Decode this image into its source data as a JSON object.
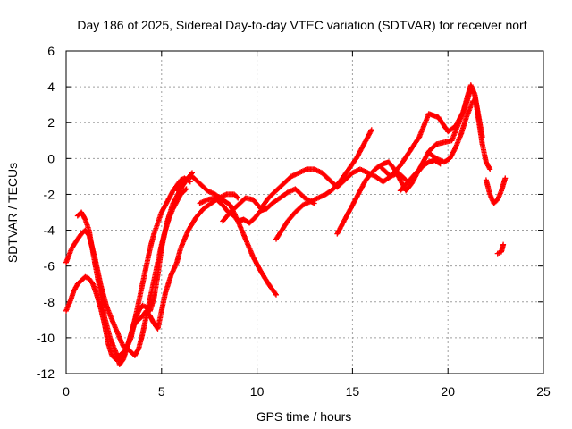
{
  "chart_data": {
    "type": "scatter",
    "title": "Day 186 of 2025, Sidereal Day-to-day VTEC variation (SDTVAR) for receiver norf",
    "xlabel": "GPS time / hours",
    "ylabel": "SDTVAR / TECUs",
    "xlim": [
      0,
      25
    ],
    "ylim": [
      -12,
      6
    ],
    "xticks": [
      "0",
      "5",
      "10",
      "15",
      "20",
      "25"
    ],
    "yticks": [
      "-12",
      "-10",
      "-8",
      "-6",
      "-4",
      "-2",
      "0",
      "2",
      "4",
      "6"
    ],
    "grid": true,
    "marker": "+",
    "color": "#ff0000",
    "series": [
      {
        "x": [
          0.0,
          0.3,
          0.6,
          0.8,
          1.0,
          1.2,
          1.5,
          1.8,
          2.1,
          2.4,
          2.6,
          2.8,
          3.0,
          3.2,
          3.4,
          3.6,
          3.8,
          4.0,
          4.2,
          4.4,
          4.6,
          4.8,
          5.0,
          5.2,
          5.4,
          5.6,
          5.8,
          6.0,
          6.2,
          6.5
        ],
        "y": [
          -5.8,
          -5.0,
          -4.5,
          -4.2,
          -4.0,
          -4.3,
          -5.5,
          -7.0,
          -8.2,
          -9.0,
          -9.5,
          -10.0,
          -10.5,
          -10.5,
          -10.0,
          -9.0,
          -8.0,
          -7.0,
          -6.0,
          -5.0,
          -4.2,
          -3.6,
          -3.0,
          -2.6,
          -2.2,
          -1.8,
          -1.5,
          -1.2,
          -1.1,
          -1.3
        ]
      },
      {
        "x": [
          0.0,
          0.2,
          0.4,
          0.6,
          0.8,
          1.0,
          1.2,
          1.4,
          1.6,
          1.8,
          2.0,
          2.2,
          2.4,
          2.6,
          2.8,
          3.0,
          3.2,
          3.4,
          3.6,
          3.8,
          4.0,
          4.2,
          4.4,
          4.6,
          4.8,
          5.0,
          5.2,
          5.4,
          5.6,
          5.8,
          6.0,
          6.3
        ],
        "y": [
          -8.5,
          -8.0,
          -7.4,
          -7.0,
          -6.8,
          -6.6,
          -6.7,
          -7.0,
          -7.6,
          -8.3,
          -9.2,
          -10.3,
          -11.0,
          -11.2,
          -11.0,
          -10.8,
          -10.6,
          -10.8,
          -11.0,
          -10.6,
          -9.8,
          -8.8,
          -7.8,
          -6.8,
          -5.8,
          -4.8,
          -4.0,
          -3.3,
          -2.8,
          -2.4,
          -2.0,
          -1.7
        ]
      },
      {
        "x": [
          0.6,
          0.8,
          1.0,
          1.2,
          1.5,
          1.8,
          2.0,
          2.3,
          2.6,
          2.8,
          3.0,
          3.2,
          3.4,
          3.6,
          3.8,
          4.0,
          4.2,
          4.4,
          4.6,
          4.8,
          5.0,
          5.3,
          5.6,
          6.0,
          6.3,
          6.6
        ],
        "y": [
          -3.2,
          -3.0,
          -3.4,
          -4.0,
          -5.8,
          -7.5,
          -8.8,
          -10.0,
          -10.8,
          -11.5,
          -11.2,
          -10.5,
          -9.8,
          -9.0,
          -8.5,
          -8.2,
          -8.3,
          -8.5,
          -7.8,
          -6.5,
          -5.0,
          -3.5,
          -2.5,
          -1.7,
          -1.2,
          -0.8
        ]
      },
      {
        "x": [
          2.6,
          2.8,
          3.0,
          3.2,
          3.4,
          3.6,
          3.8,
          4.0,
          4.2,
          4.4,
          4.6,
          4.8,
          5.0,
          5.2,
          5.5,
          5.8,
          6.0,
          6.4,
          6.8,
          7.2,
          7.6,
          8.0,
          8.4,
          8.8,
          9.0
        ],
        "y": [
          -11.0,
          -11.3,
          -11.0,
          -10.5,
          -9.8,
          -9.2,
          -9.0,
          -8.8,
          -8.5,
          -8.8,
          -9.2,
          -9.5,
          -8.5,
          -7.5,
          -6.5,
          -5.8,
          -5.0,
          -4.0,
          -3.3,
          -2.8,
          -2.5,
          -2.2,
          -2.0,
          -2.0,
          -2.2
        ]
      },
      {
        "x": [
          7.0,
          7.4,
          7.8,
          8.2,
          8.5,
          8.8,
          9.0,
          9.3,
          9.6,
          9.9,
          10.2,
          10.5,
          10.8,
          11.2,
          11.6,
          12.0,
          12.5,
          13.0
        ],
        "y": [
          -2.5,
          -2.3,
          -2.2,
          -2.6,
          -3.0,
          -3.2,
          -3.5,
          -3.4,
          -3.6,
          -3.3,
          -2.9,
          -2.8,
          -2.5,
          -2.2,
          -1.9,
          -1.7,
          -2.2,
          -2.5
        ]
      },
      {
        "x": [
          5.8,
          6.2,
          6.6,
          7.0,
          7.4,
          7.8,
          8.2,
          8.6,
          9.0,
          9.4,
          9.8,
          10.2,
          10.6,
          11.0
        ],
        "y": [
          -1.8,
          -1.2,
          -1.0,
          -1.4,
          -1.8,
          -2.0,
          -2.3,
          -2.6,
          -3.5,
          -4.5,
          -5.5,
          -6.3,
          -7.0,
          -7.6
        ]
      },
      {
        "x": [
          8.2,
          8.6,
          9.0,
          9.4,
          9.8,
          10.2,
          10.6,
          11.0,
          11.4,
          11.8,
          12.2,
          12.6,
          13.0,
          13.4,
          13.8,
          14.2,
          14.6,
          15.0,
          15.4,
          15.8,
          16.2,
          16.6,
          17.0,
          17.4,
          17.8
        ],
        "y": [
          -3.5,
          -3.0,
          -2.6,
          -2.2,
          -2.3,
          -2.8,
          -2.2,
          -1.8,
          -1.4,
          -1.0,
          -0.8,
          -0.6,
          -0.6,
          -0.8,
          -1.2,
          -1.6,
          -1.2,
          -0.8,
          -0.6,
          -0.8,
          -1.0,
          -1.3,
          -1.0,
          -0.8,
          -1.2
        ]
      },
      {
        "x": [
          11.0,
          11.3,
          11.6,
          12.0,
          12.4,
          12.8,
          13.2,
          13.6,
          14.0,
          14.4,
          14.8,
          15.2,
          15.6,
          16.0
        ],
        "y": [
          -4.5,
          -4.0,
          -3.5,
          -3.0,
          -2.6,
          -2.4,
          -2.2,
          -2.0,
          -1.7,
          -1.2,
          -0.6,
          0.0,
          0.8,
          1.6
        ]
      },
      {
        "x": [
          14.2,
          14.5,
          14.8,
          15.1,
          15.4,
          15.7,
          16.0,
          16.3,
          16.6,
          16.9,
          17.2,
          17.5,
          17.8,
          18.1,
          18.4,
          18.7,
          19.0,
          19.3,
          19.6
        ],
        "y": [
          -4.2,
          -3.6,
          -3.0,
          -2.4,
          -1.8,
          -1.2,
          -0.8,
          -0.5,
          -0.3,
          -0.2,
          -0.6,
          -1.2,
          -1.8,
          -1.4,
          -0.8,
          -0.4,
          -0.2,
          -0.1,
          -0.3
        ]
      },
      {
        "x": [
          16.5,
          17.0,
          17.5,
          18.0,
          18.5,
          19.0,
          19.5,
          20.0,
          20.4,
          20.8,
          21.0,
          21.2,
          21.4,
          21.6,
          21.8
        ],
        "y": [
          -0.5,
          -1.0,
          -0.4,
          0.4,
          1.2,
          2.5,
          2.3,
          1.5,
          1.8,
          2.6,
          3.2,
          3.9,
          3.6,
          2.4,
          1.2
        ]
      },
      {
        "x": [
          17.5,
          18.0,
          18.5,
          19.0,
          19.4,
          19.8,
          20.2,
          20.5,
          20.8,
          21.0,
          21.2,
          21.4,
          21.6,
          21.8,
          22.0,
          22.2
        ],
        "y": [
          -1.8,
          -1.2,
          -0.6,
          0.4,
          0.8,
          0.9,
          1.0,
          1.8,
          2.6,
          3.4,
          4.1,
          3.6,
          2.2,
          0.8,
          -0.2,
          -0.6
        ]
      },
      {
        "x": [
          19.0,
          19.4,
          19.8,
          20.1,
          20.4,
          20.7,
          21.0,
          21.3
        ],
        "y": [
          0.3,
          0.0,
          -0.2,
          0.0,
          0.6,
          1.4,
          2.4,
          3.2
        ]
      },
      {
        "x": [
          22.0,
          22.2,
          22.4,
          22.6,
          22.8,
          23.0
        ],
        "y": [
          -1.2,
          -2.0,
          -2.5,
          -2.3,
          -1.8,
          -1.1
        ]
      },
      {
        "x": [
          22.6,
          22.8,
          22.9
        ],
        "y": [
          -5.3,
          -5.2,
          -4.8
        ]
      }
    ]
  }
}
